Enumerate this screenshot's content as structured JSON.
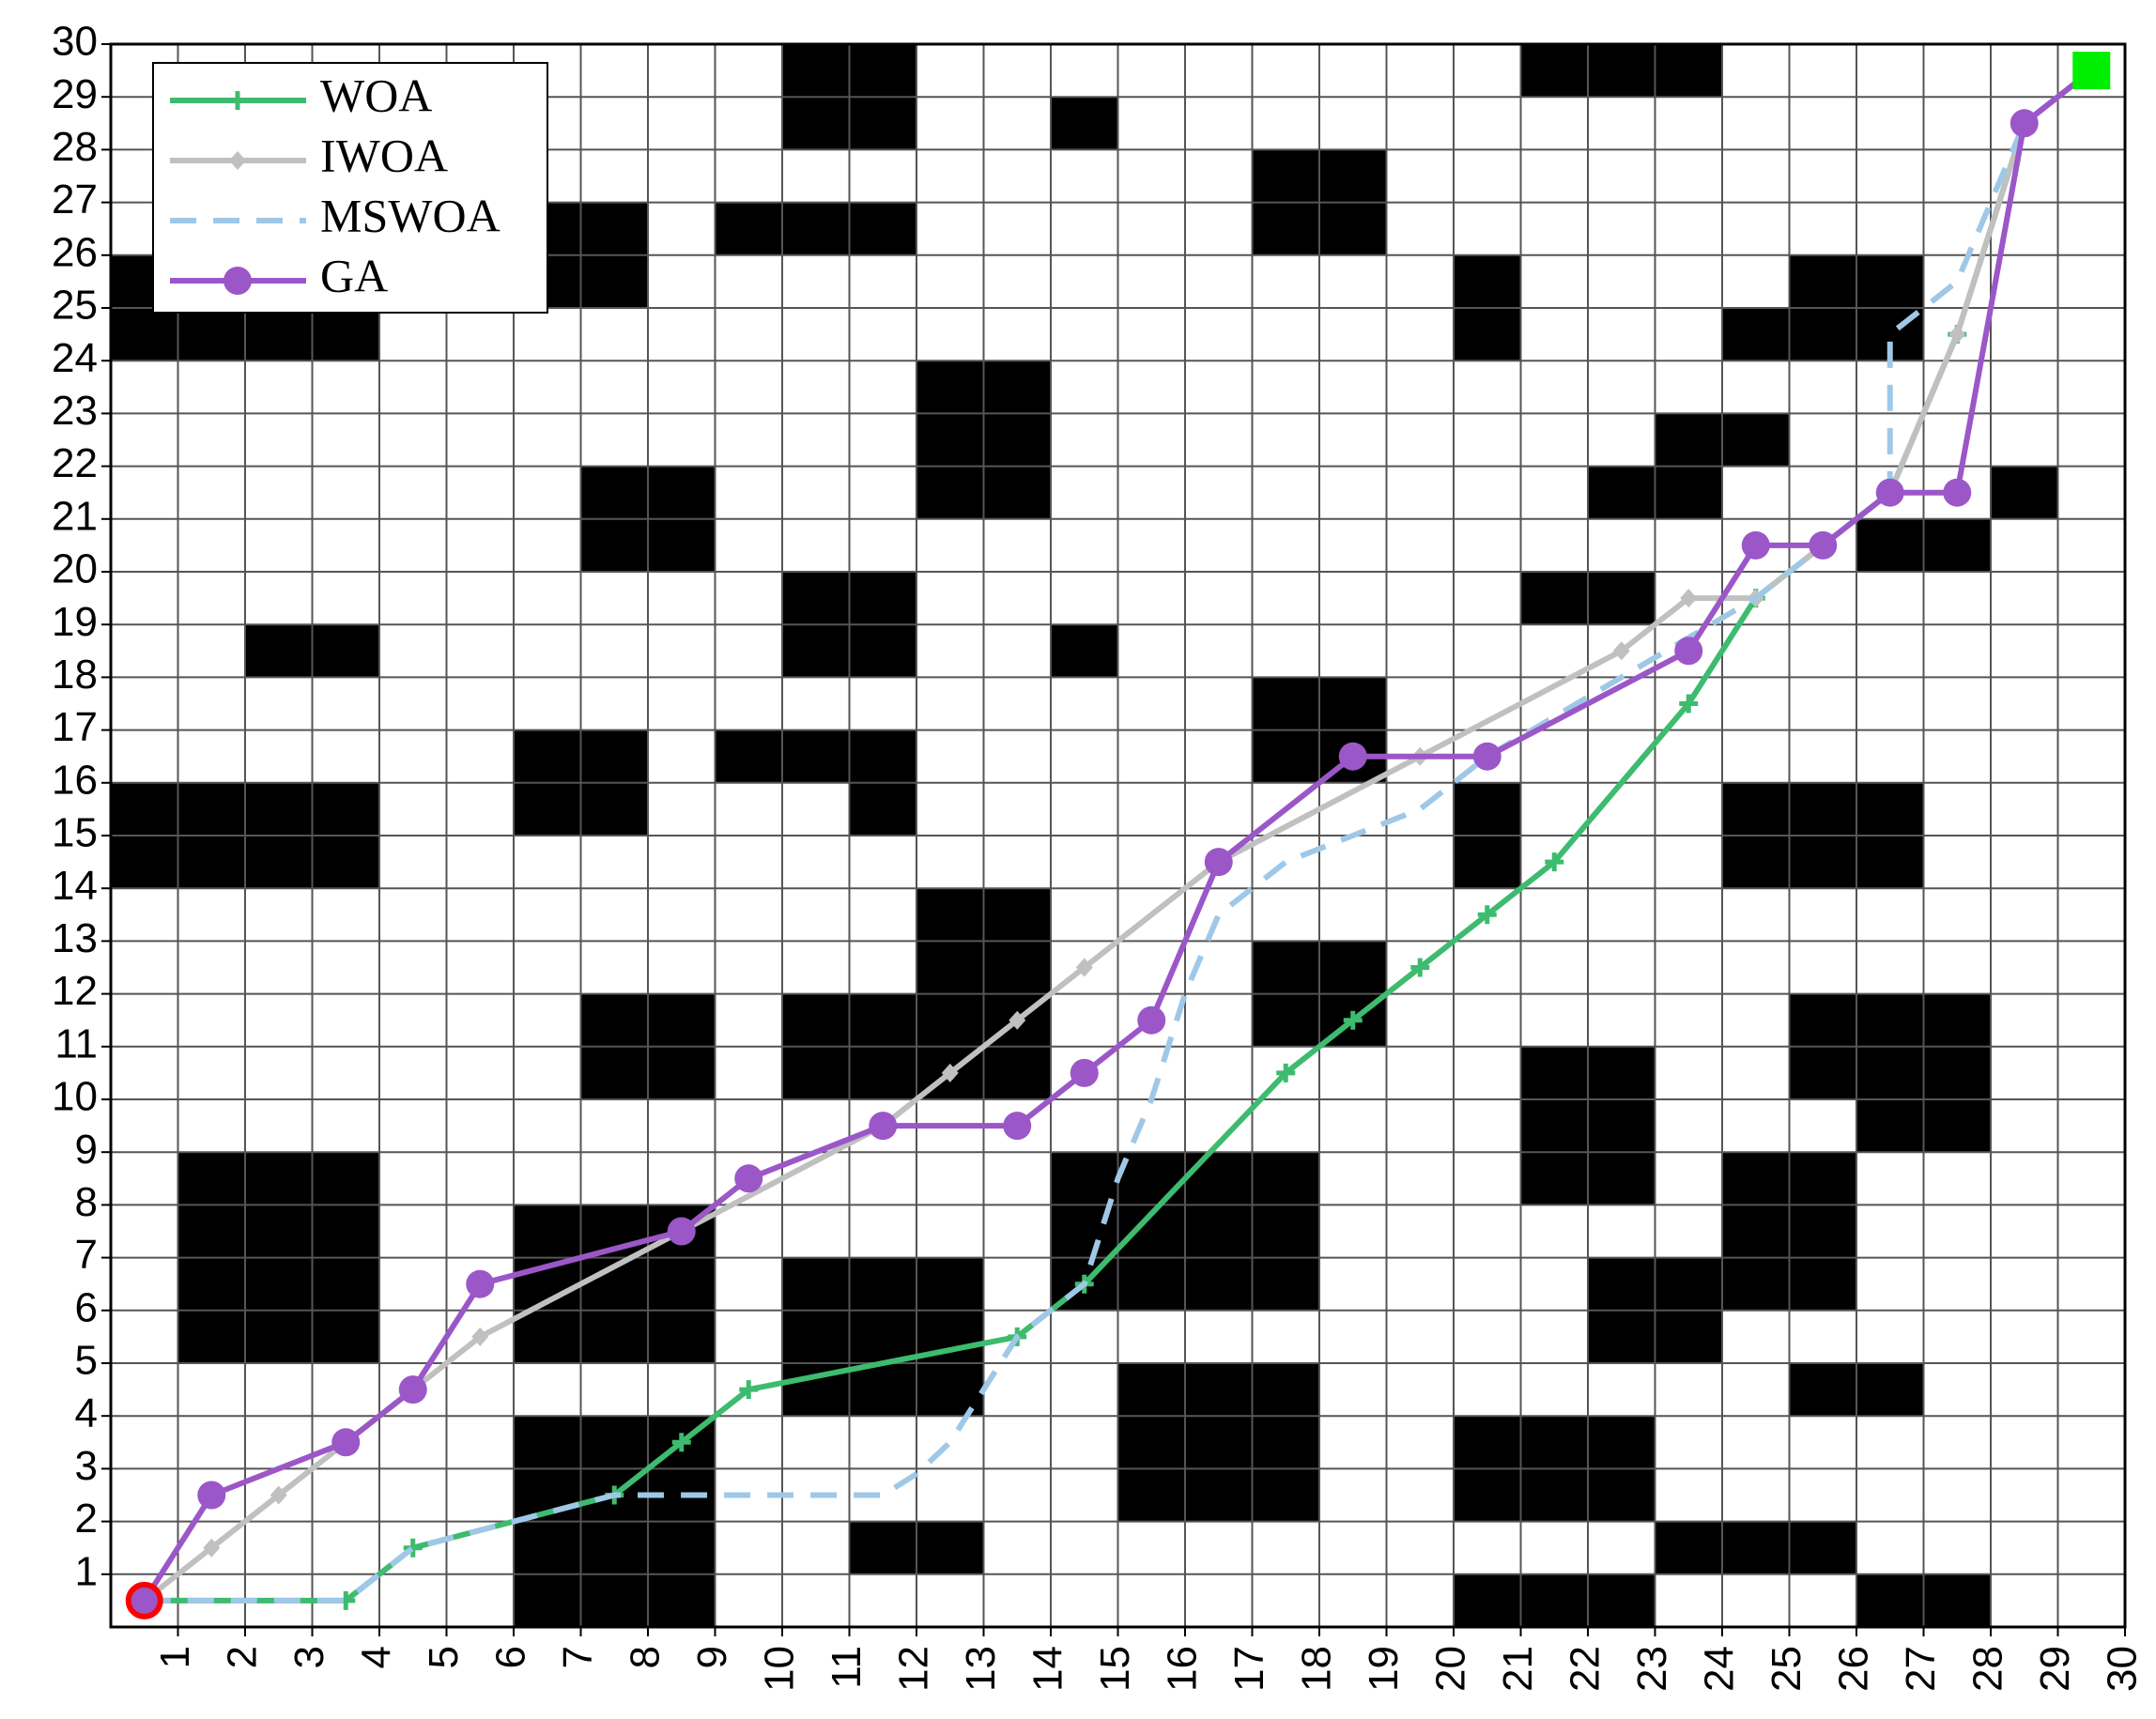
{
  "chart_data": {
    "type": "grid-path",
    "xlim": [
      0,
      30
    ],
    "ylim": [
      0,
      30
    ],
    "xticks": [
      1,
      2,
      3,
      4,
      5,
      6,
      7,
      8,
      9,
      10,
      11,
      12,
      13,
      14,
      15,
      16,
      17,
      18,
      19,
      20,
      21,
      22,
      23,
      24,
      25,
      26,
      27,
      28,
      29,
      30
    ],
    "yticks": [
      1,
      2,
      3,
      4,
      5,
      6,
      7,
      8,
      9,
      10,
      11,
      12,
      13,
      14,
      15,
      16,
      17,
      18,
      19,
      20,
      21,
      22,
      23,
      24,
      25,
      26,
      27,
      28,
      29,
      30
    ],
    "grid": true,
    "legend": "upper-left",
    "obstacle_color": "#000000",
    "obstacles": [
      [
        10,
        28,
        2,
        2
      ],
      [
        21,
        29,
        3,
        1
      ],
      [
        14,
        28,
        1,
        1
      ],
      [
        17,
        26,
        2,
        2
      ],
      [
        0,
        24,
        4,
        1
      ],
      [
        0,
        25,
        1,
        1
      ],
      [
        6,
        25,
        2,
        2
      ],
      [
        9,
        26,
        3,
        1
      ],
      [
        20,
        24,
        1,
        2
      ],
      [
        25,
        25,
        2,
        1
      ],
      [
        24,
        24,
        3,
        1
      ],
      [
        12,
        21,
        2,
        3
      ],
      [
        23,
        22,
        2,
        1
      ],
      [
        22,
        21,
        2,
        1
      ],
      [
        28,
        21,
        1,
        1
      ],
      [
        26,
        20,
        2,
        1
      ],
      [
        7,
        20,
        2,
        2
      ],
      [
        10,
        18,
        2,
        2
      ],
      [
        21,
        19,
        2,
        1
      ],
      [
        2,
        18,
        2,
        1
      ],
      [
        14,
        18,
        1,
        1
      ],
      [
        17,
        16,
        2,
        2
      ],
      [
        6,
        15,
        2,
        2
      ],
      [
        9,
        16,
        3,
        1
      ],
      [
        11,
        15,
        1,
        1
      ],
      [
        0,
        14,
        4,
        2
      ],
      [
        20,
        14,
        1,
        2
      ],
      [
        24,
        14,
        3,
        2
      ],
      [
        12,
        10,
        2,
        4
      ],
      [
        10,
        10,
        2,
        2
      ],
      [
        7,
        10,
        2,
        2
      ],
      [
        17,
        11,
        2,
        2
      ],
      [
        21,
        8,
        2,
        3
      ],
      [
        25,
        10,
        3,
        2
      ],
      [
        26,
        9,
        2,
        1
      ],
      [
        1,
        5,
        3,
        4
      ],
      [
        6,
        5,
        3,
        3
      ],
      [
        14,
        6,
        4,
        3
      ],
      [
        24,
        6,
        2,
        3
      ],
      [
        22,
        5,
        2,
        2
      ],
      [
        10,
        4,
        3,
        3
      ],
      [
        15,
        2,
        3,
        3
      ],
      [
        25,
        4,
        2,
        1
      ],
      [
        6,
        0,
        3,
        4
      ],
      [
        20,
        2,
        3,
        2
      ],
      [
        11,
        1,
        2,
        1
      ],
      [
        23,
        1,
        3,
        1
      ],
      [
        20,
        0,
        3,
        1
      ],
      [
        26,
        0,
        2,
        1
      ]
    ],
    "start": [
      0.5,
      0.5
    ],
    "start_color": "#ff0000",
    "goal": [
      29.5,
      29.5
    ],
    "goal_color": "#00ee00",
    "series": [
      {
        "name": "WOA",
        "color": "#3dbb6f",
        "marker": "plus",
        "dash": false,
        "x": [
          0.5,
          3.5,
          4.5,
          7.5,
          8.5,
          9.5,
          13.5,
          14.5,
          17.5,
          18.5,
          19.5,
          20.5,
          21.5,
          23.5,
          24.5,
          25.5,
          26.5,
          27.5,
          28.5,
          29.5
        ],
        "y": [
          0.5,
          0.5,
          1.5,
          2.5,
          3.5,
          4.5,
          5.5,
          6.5,
          10.5,
          11.5,
          12.5,
          13.5,
          14.5,
          17.5,
          19.5,
          20.5,
          21.5,
          24.5,
          28.5,
          29.5
        ]
      },
      {
        "name": "IWOA",
        "color": "#c0c0c0",
        "marker": "diamond",
        "dash": false,
        "x": [
          0.5,
          1.5,
          2.5,
          3.5,
          4.5,
          5.5,
          8.5,
          11.5,
          12.5,
          13.5,
          14.5,
          16.5,
          19.5,
          22.5,
          23.5,
          24.5,
          25.5,
          26.5,
          27.5,
          28.5,
          29.5
        ],
        "y": [
          0.5,
          1.5,
          2.5,
          3.5,
          4.5,
          5.5,
          7.5,
          9.5,
          10.5,
          11.5,
          12.5,
          14.5,
          16.5,
          18.5,
          19.5,
          19.5,
          20.5,
          21.5,
          24.5,
          28.5,
          29.5
        ]
      },
      {
        "name": "MSWOA",
        "color": "#9fc8e8",
        "marker": "none",
        "dash": true,
        "x": [
          0.5,
          3.5,
          4.5,
          7.5,
          11.5,
          12,
          12.5,
          13.5,
          14.5,
          15,
          15.5,
          16,
          16.5,
          17.5,
          18.5,
          19.5,
          20.5,
          24.5,
          25.5,
          26.5,
          26.5,
          27.5,
          28,
          28.5,
          29.5
        ],
        "y": [
          0.5,
          0.5,
          1.5,
          2.5,
          2.5,
          2.9,
          3.5,
          5.5,
          6.5,
          8.5,
          10,
          12,
          13.5,
          14.5,
          15,
          15.5,
          16.5,
          19.5,
          20.5,
          21.5,
          24.5,
          25.5,
          27,
          28.5,
          29.5
        ]
      },
      {
        "name": "GA",
        "color": "#9b57c8",
        "marker": "circle",
        "dash": false,
        "x": [
          0.5,
          1.5,
          3.5,
          4.5,
          5.5,
          8.5,
          9.5,
          11.5,
          13.5,
          14.5,
          15.5,
          16.5,
          18.5,
          20.5,
          23.5,
          24.5,
          25.5,
          26.5,
          27.5,
          28.5,
          29.5
        ],
        "y": [
          0.5,
          2.5,
          3.5,
          4.5,
          6.5,
          7.5,
          8.5,
          9.5,
          9.5,
          10.5,
          11.5,
          14.5,
          16.5,
          16.5,
          18.5,
          20.5,
          20.5,
          21.5,
          21.5,
          28.5,
          29.5
        ]
      }
    ]
  }
}
